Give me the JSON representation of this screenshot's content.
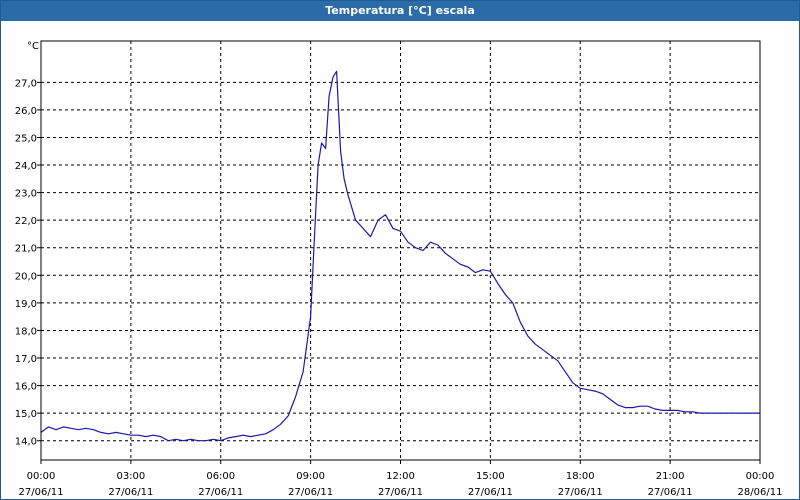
{
  "window": {
    "title": "Temperatura [°C] escala"
  },
  "colors": {
    "title_bar": "#2b6ca8",
    "series": "#1a1aa6",
    "grid": "#000000",
    "frame": "#000000"
  },
  "chart_data": {
    "type": "line",
    "title": "Temperatura [°C] escala",
    "ylabel": "°C",
    "xlabel": "",
    "grid": true,
    "ylim": [
      13.3,
      28.5
    ],
    "xlim": [
      "2011-06-27 00:00",
      "2011-06-28 00:00"
    ],
    "y_ticks": [
      "27,0",
      "26,0",
      "25,0",
      "24,0",
      "23,0",
      "22,0",
      "21,0",
      "20,0",
      "19,0",
      "18,0",
      "17,0",
      "16,0",
      "15,0",
      "14,0"
    ],
    "y_tick_values": [
      27,
      26,
      25,
      24,
      23,
      22,
      21,
      20,
      19,
      18,
      17,
      16,
      15,
      14
    ],
    "x_ticks": [
      {
        "time": "00:00",
        "date": "27/06/11"
      },
      {
        "time": "03:00",
        "date": "27/06/11"
      },
      {
        "time": "06:00",
        "date": "27/06/11"
      },
      {
        "time": "09:00",
        "date": "27/06/11"
      },
      {
        "time": "12:00",
        "date": "27/06/11"
      },
      {
        "time": "15:00",
        "date": "27/06/11"
      },
      {
        "time": "18:00",
        "date": "27/06/11"
      },
      {
        "time": "21:00",
        "date": "27/06/11"
      },
      {
        "time": "00:00",
        "date": "28/06/11"
      }
    ],
    "series": [
      {
        "x": [
          "2011-06-27 00:00",
          "2011-06-27 00:15",
          "2011-06-27 00:30",
          "2011-06-27 00:45",
          "2011-06-27 01:00",
          "2011-06-27 01:15",
          "2011-06-27 01:30",
          "2011-06-27 01:45",
          "2011-06-27 02:00",
          "2011-06-27 02:15",
          "2011-06-27 02:30",
          "2011-06-27 02:45",
          "2011-06-27 03:00",
          "2011-06-27 03:15",
          "2011-06-27 03:30",
          "2011-06-27 03:45",
          "2011-06-27 04:00",
          "2011-06-27 04:15",
          "2011-06-27 04:30",
          "2011-06-27 04:45",
          "2011-06-27 05:00",
          "2011-06-27 05:15",
          "2011-06-27 05:30",
          "2011-06-27 05:45",
          "2011-06-27 06:00",
          "2011-06-27 06:15",
          "2011-06-27 06:30",
          "2011-06-27 06:45",
          "2011-06-27 07:00",
          "2011-06-27 07:15",
          "2011-06-27 07:30",
          "2011-06-27 07:45",
          "2011-06-27 08:00",
          "2011-06-27 08:15",
          "2011-06-27 08:30",
          "2011-06-27 08:45",
          "2011-06-27 09:00",
          "2011-06-27 09:08",
          "2011-06-27 09:15",
          "2011-06-27 09:22",
          "2011-06-27 09:30",
          "2011-06-27 09:37",
          "2011-06-27 09:45",
          "2011-06-27 09:52",
          "2011-06-27 10:00",
          "2011-06-27 10:07",
          "2011-06-27 10:15",
          "2011-06-27 10:30",
          "2011-06-27 10:45",
          "2011-06-27 11:00",
          "2011-06-27 11:15",
          "2011-06-27 11:30",
          "2011-06-27 11:45",
          "2011-06-27 12:00",
          "2011-06-27 12:15",
          "2011-06-27 12:30",
          "2011-06-27 12:45",
          "2011-06-27 13:00",
          "2011-06-27 13:15",
          "2011-06-27 13:30",
          "2011-06-27 13:45",
          "2011-06-27 14:00",
          "2011-06-27 14:15",
          "2011-06-27 14:30",
          "2011-06-27 14:45",
          "2011-06-27 15:00",
          "2011-06-27 15:15",
          "2011-06-27 15:30",
          "2011-06-27 15:45",
          "2011-06-27 16:00",
          "2011-06-27 16:15",
          "2011-06-27 16:30",
          "2011-06-27 16:45",
          "2011-06-27 17:00",
          "2011-06-27 17:15",
          "2011-06-27 17:30",
          "2011-06-27 17:45",
          "2011-06-27 18:00",
          "2011-06-27 18:15",
          "2011-06-27 18:30",
          "2011-06-27 18:45",
          "2011-06-27 19:00",
          "2011-06-27 19:15",
          "2011-06-27 19:30",
          "2011-06-27 19:45",
          "2011-06-27 20:00",
          "2011-06-27 20:15",
          "2011-06-27 20:30",
          "2011-06-27 20:45",
          "2011-06-27 21:00",
          "2011-06-27 21:15",
          "2011-06-27 21:30",
          "2011-06-27 21:45",
          "2011-06-27 22:00",
          "2011-06-27 22:15",
          "2011-06-27 22:30",
          "2011-06-27 22:45",
          "2011-06-27 23:00",
          "2011-06-27 23:15",
          "2011-06-27 23:30",
          "2011-06-27 23:45",
          "2011-06-28 00:00"
        ],
        "values": [
          14.3,
          14.5,
          14.4,
          14.5,
          14.45,
          14.4,
          14.45,
          14.4,
          14.3,
          14.25,
          14.3,
          14.25,
          14.2,
          14.2,
          14.15,
          14.2,
          14.15,
          14.0,
          14.05,
          14.0,
          14.05,
          14.0,
          14.0,
          14.05,
          14.0,
          14.1,
          14.15,
          14.2,
          14.15,
          14.2,
          14.25,
          14.4,
          14.6,
          14.9,
          15.6,
          16.5,
          18.5,
          21.5,
          24.0,
          24.8,
          24.6,
          26.5,
          27.2,
          27.4,
          24.5,
          23.5,
          22.9,
          22.0,
          21.7,
          21.4,
          22.0,
          22.2,
          21.7,
          21.6,
          21.2,
          21.0,
          20.9,
          21.2,
          21.1,
          20.8,
          20.6,
          20.4,
          20.3,
          20.1,
          20.2,
          20.15,
          19.7,
          19.3,
          19.0,
          18.3,
          17.8,
          17.5,
          17.3,
          17.1,
          16.9,
          16.5,
          16.1,
          15.9,
          15.85,
          15.8,
          15.7,
          15.5,
          15.3,
          15.2,
          15.2,
          15.25,
          15.25,
          15.15,
          15.1,
          15.1,
          15.1,
          15.05,
          15.05,
          15.0,
          15.0,
          15.0,
          15.0,
          15.0,
          15.0,
          15.0,
          15.0,
          15.0
        ]
      }
    ]
  }
}
